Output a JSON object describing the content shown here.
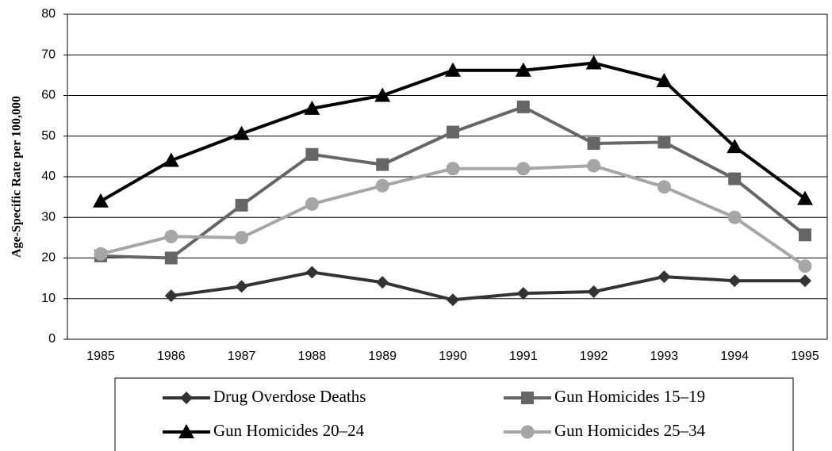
{
  "chart_data": {
    "type": "line",
    "y_label": "Age-Specific Rate per 100,000",
    "categories": [
      "1985",
      "1986",
      "1987",
      "1988",
      "1989",
      "1990",
      "1991",
      "1992",
      "1993",
      "1994",
      "1995"
    ],
    "series": [
      {
        "name": "Drug Overdose Deaths",
        "color": "#333333",
        "marker": "diamond",
        "values": [
          null,
          10.7,
          13,
          16.5,
          14,
          9.7,
          11.3,
          11.7,
          15.4,
          14.4,
          14.4
        ]
      },
      {
        "name": "Gun Homicides 15–19",
        "color": "#666666",
        "marker": "square",
        "values": [
          20.5,
          20,
          33,
          45.5,
          43,
          51,
          57.2,
          48.2,
          48.5,
          39.5,
          25.7
        ]
      },
      {
        "name": "Gun Homicides 20–24",
        "color": "#000000",
        "marker": "triangle",
        "values": [
          34,
          44,
          50.6,
          56.8,
          60,
          66.2,
          66.2,
          68,
          63.6,
          47.4,
          34.6
        ]
      },
      {
        "name": "Gun Homicides 25–34",
        "color": "#a6a6a6",
        "marker": "circle",
        "values": [
          21,
          25.3,
          25,
          33.3,
          37.8,
          42,
          42,
          42.7,
          37.5,
          30,
          18
        ]
      }
    ],
    "ylim": [
      0,
      80
    ],
    "yticks": [
      0,
      10,
      20,
      30,
      40,
      50,
      60,
      70,
      80
    ],
    "grid": true
  }
}
